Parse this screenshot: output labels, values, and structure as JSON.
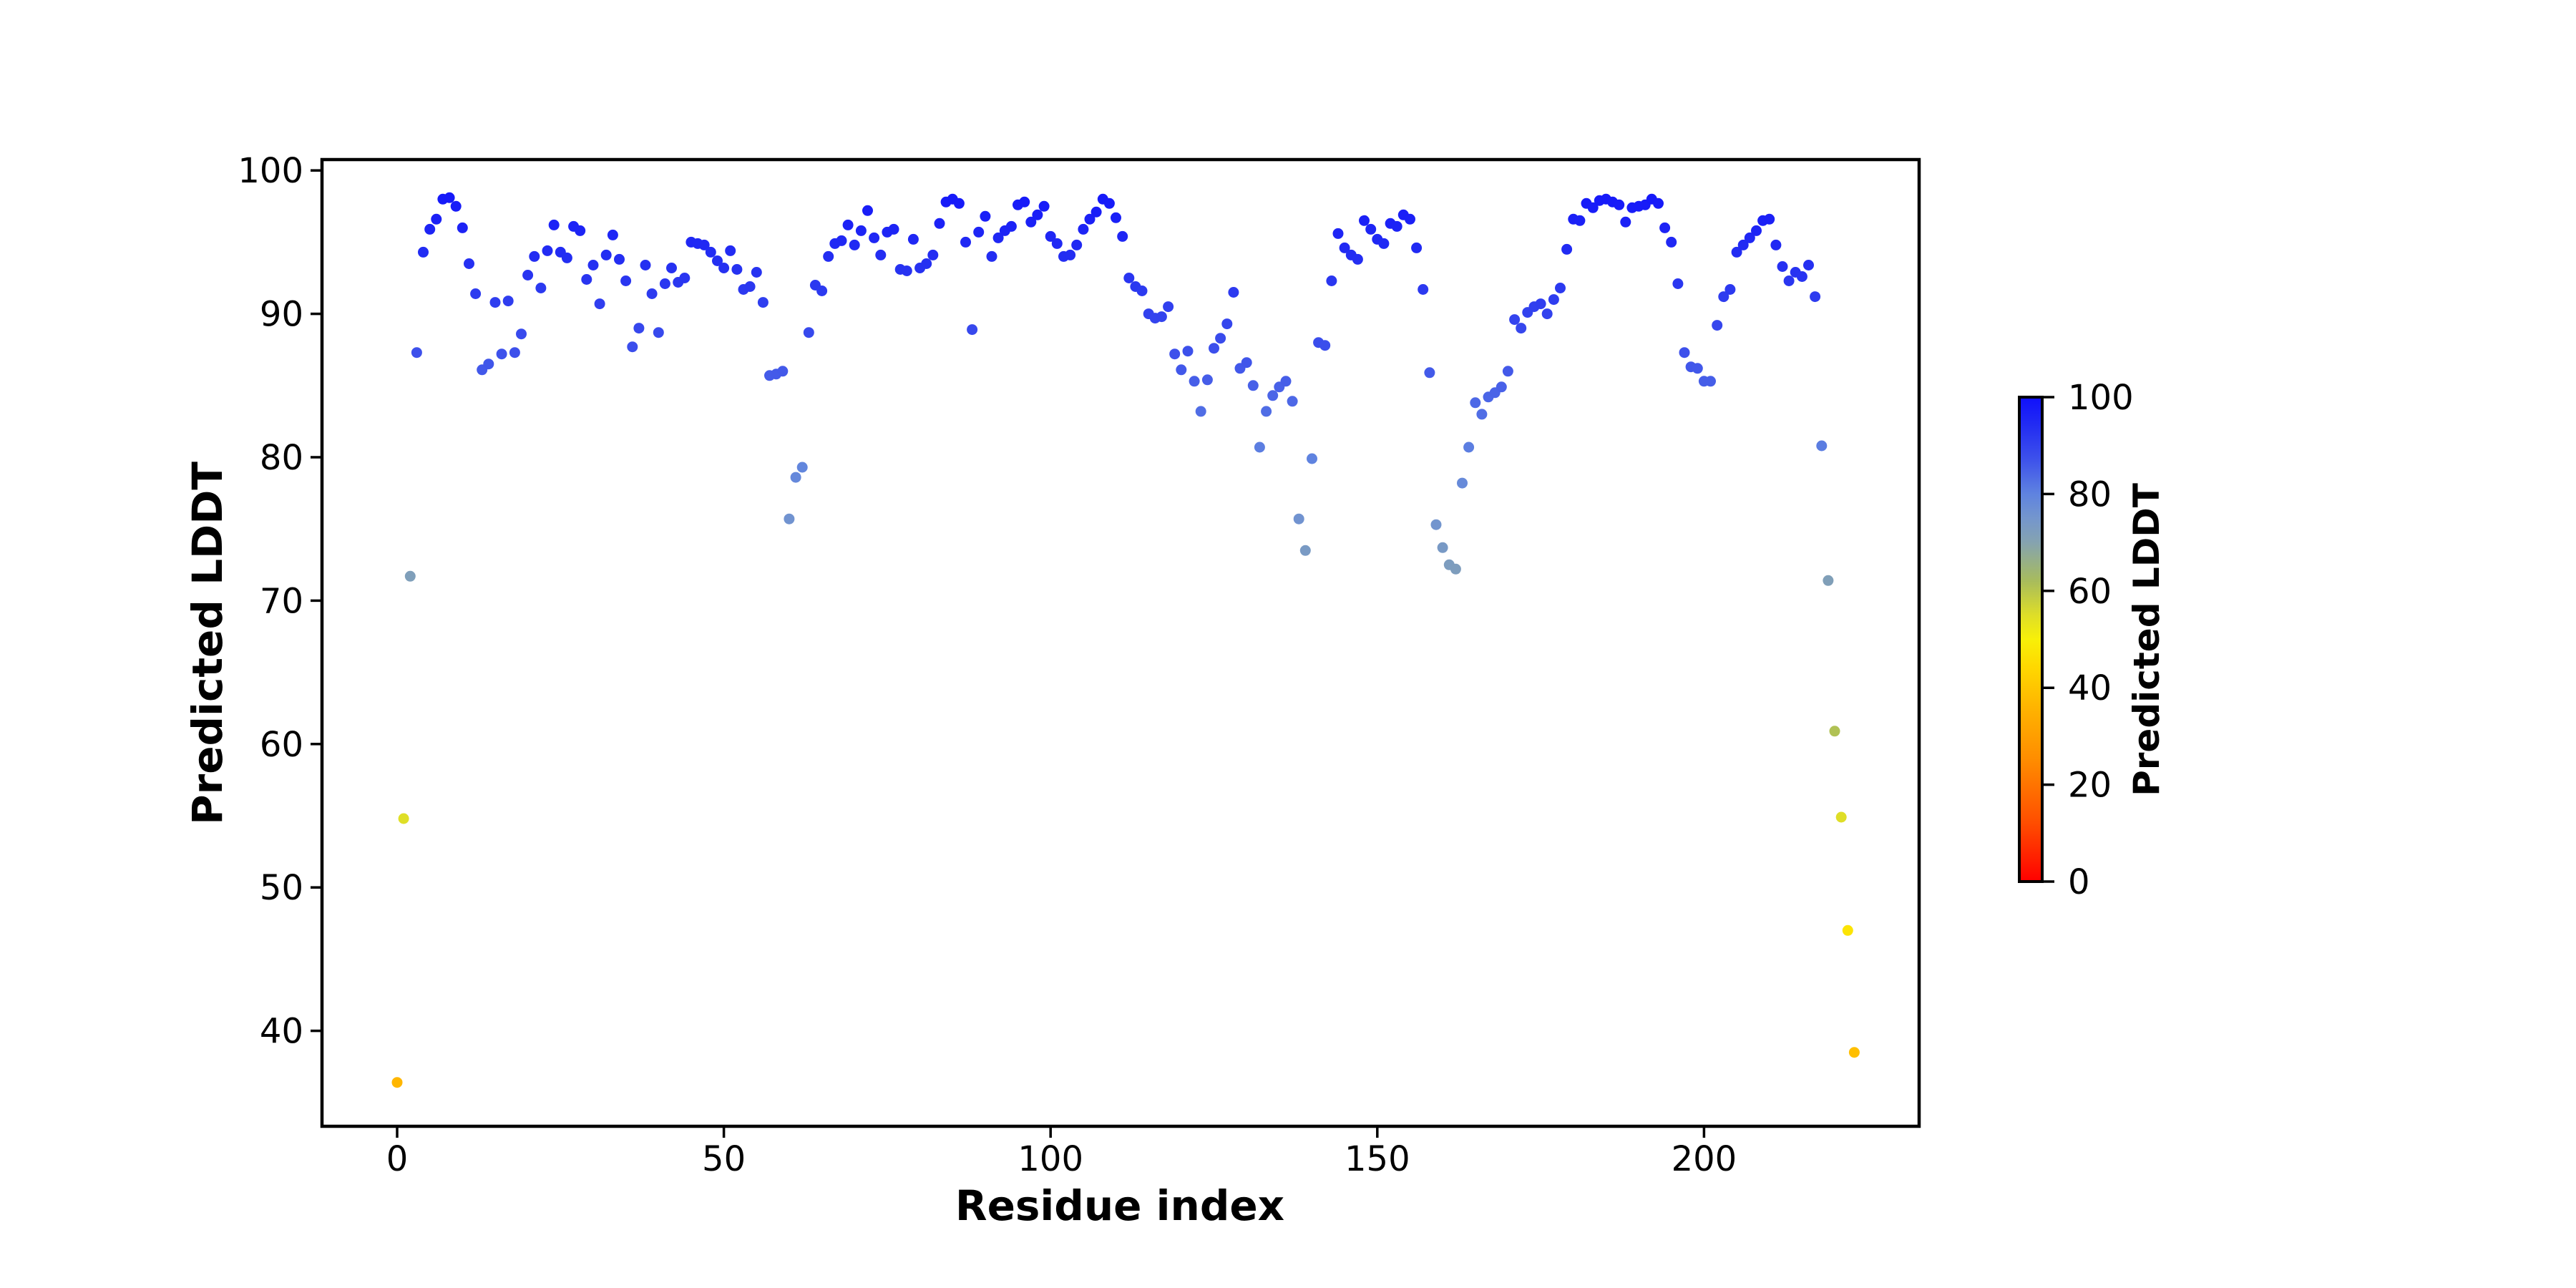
{
  "figure": {
    "background": "#ffffff",
    "title": ""
  },
  "axes": {
    "xlabel": "Residue index",
    "ylabel": "Predicted LDDT",
    "x_ticks": [
      0,
      50,
      100,
      150,
      200
    ],
    "y_ticks": [
      40,
      50,
      60,
      70,
      80,
      90,
      100
    ],
    "xlim": [
      -11.5,
      232.9
    ],
    "ylim": [
      33.3,
      100.8
    ],
    "spine_color": "#000000",
    "tick_color": "#000000",
    "grid": false
  },
  "colorbar": {
    "label": "Predicted LDDT",
    "ticks": [
      0,
      20,
      40,
      60,
      80,
      100
    ],
    "range": [
      0,
      100
    ],
    "gradient_stops": [
      [
        0,
        [
          255,
          0,
          0
        ]
      ],
      [
        12,
        [
          255,
          77,
          0
        ]
      ],
      [
        25,
        [
          255,
          140,
          0
        ]
      ],
      [
        36,
        [
          255,
          180,
          0
        ]
      ],
      [
        44,
        [
          255,
          215,
          0
        ]
      ],
      [
        50,
        [
          248,
          240,
          8
        ]
      ],
      [
        55,
        [
          222,
          222,
          40
        ]
      ],
      [
        62,
        [
          168,
          188,
          92
        ]
      ],
      [
        70,
        [
          133,
          163,
          176
        ]
      ],
      [
        75,
        [
          116,
          150,
          205
        ]
      ],
      [
        80,
        [
          95,
          131,
          224
        ]
      ],
      [
        87,
        [
          62,
          82,
          235
        ]
      ],
      [
        94,
        [
          35,
          45,
          242
        ]
      ],
      [
        100,
        [
          16,
          16,
          252
        ]
      ]
    ]
  },
  "chart_data": {
    "type": "scatter",
    "title": "",
    "xlabel": "Residue index",
    "ylabel": "Predicted LDDT",
    "legend": "none",
    "grid": false,
    "xlim": [
      -11.5,
      232.9
    ],
    "ylim": [
      33.3,
      100.8
    ],
    "x_start": 0,
    "x_step": 1,
    "point_color_by": "value_colormap",
    "series": [
      {
        "name": "Predicted LDDT per residue",
        "values": [
          36.4,
          54.8,
          71.7,
          87.3,
          94.3,
          95.9,
          96.6,
          98.0,
          98.1,
          97.5,
          96.0,
          93.5,
          91.4,
          86.1,
          86.5,
          90.8,
          87.2,
          90.9,
          87.3,
          88.6,
          92.7,
          94.0,
          91.8,
          94.4,
          96.2,
          94.3,
          93.9,
          96.1,
          95.8,
          92.4,
          93.4,
          90.7,
          94.1,
          95.5,
          93.8,
          92.3,
          87.7,
          89.0,
          93.4,
          91.4,
          88.7,
          92.1,
          93.2,
          92.2,
          92.5,
          95.0,
          94.9,
          94.8,
          94.3,
          93.7,
          93.2,
          94.4,
          93.1,
          91.7,
          91.9,
          92.9,
          90.8,
          85.7,
          85.8,
          86.0,
          75.7,
          78.6,
          79.3,
          88.7,
          92.0,
          91.6,
          94.0,
          94.9,
          95.1,
          96.2,
          94.8,
          95.8,
          97.2,
          95.3,
          94.1,
          95.7,
          95.9,
          93.1,
          93.0,
          95.2,
          93.2,
          93.5,
          94.1,
          96.3,
          97.8,
          98.0,
          97.7,
          95.0,
          88.9,
          95.7,
          96.8,
          94.0,
          95.3,
          95.8,
          96.1,
          97.6,
          97.8,
          96.4,
          96.9,
          97.5,
          95.4,
          94.9,
          94.0,
          94.1,
          94.8,
          95.9,
          96.6,
          97.1,
          98.0,
          97.7,
          96.7,
          95.4,
          92.5,
          91.9,
          91.6,
          90.0,
          89.7,
          89.8,
          90.5,
          87.2,
          86.1,
          87.4,
          85.3,
          83.2,
          85.4,
          87.6,
          88.3,
          89.3,
          91.5,
          86.2,
          86.6,
          85.0,
          80.7,
          83.2,
          84.3,
          84.9,
          85.3,
          83.9,
          75.7,
          73.5,
          79.9,
          88.0,
          87.8,
          92.3,
          95.6,
          94.6,
          94.1,
          93.8,
          96.5,
          95.9,
          95.2,
          94.9,
          96.3,
          96.1,
          96.9,
          96.6,
          94.6,
          91.7,
          85.9,
          75.3,
          73.7,
          72.5,
          72.2,
          78.2,
          80.7,
          83.8,
          83.0,
          84.2,
          84.5,
          84.9,
          86.0,
          89.6,
          89.0,
          90.1,
          90.5,
          90.7,
          90.0,
          91.0,
          91.8,
          94.5,
          96.6,
          96.5,
          97.7,
          97.4,
          97.9,
          98.0,
          97.8,
          97.6,
          96.4,
          97.4,
          97.5,
          97.6,
          98.0,
          97.7,
          96.0,
          95.0,
          92.1,
          87.3,
          86.3,
          86.2,
          85.3,
          85.3,
          89.2,
          91.2,
          91.7,
          94.3,
          94.8,
          95.3,
          95.8,
          96.5,
          96.6,
          94.8,
          93.3,
          92.3,
          92.9,
          92.6,
          93.4,
          91.2,
          80.8,
          71.4,
          60.9,
          54.9,
          47.0,
          38.5
        ]
      }
    ]
  }
}
